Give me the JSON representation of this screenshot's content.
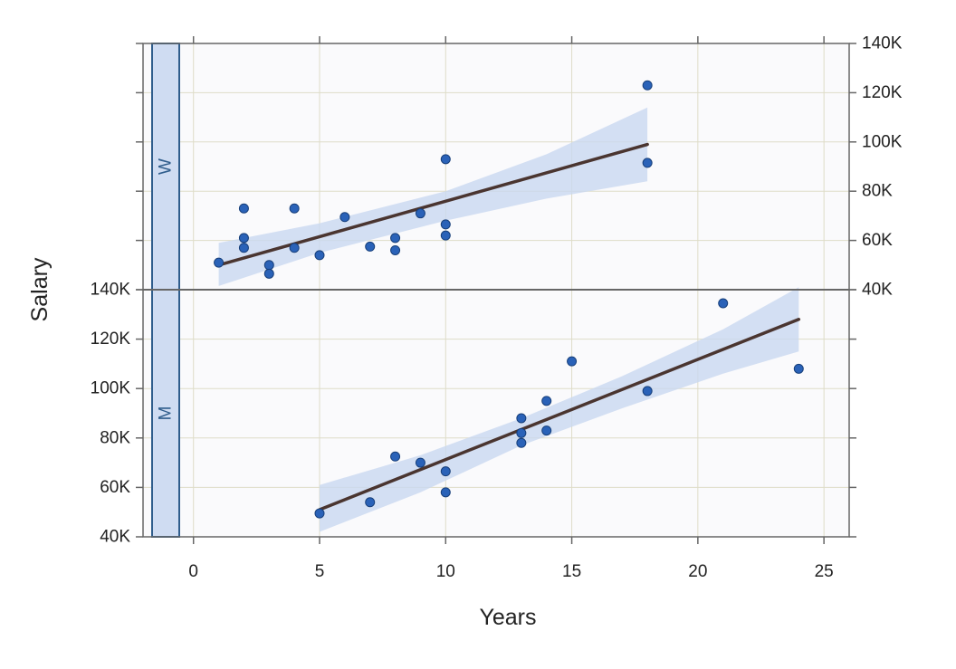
{
  "chart_data": {
    "type": "scatter",
    "title": "",
    "xlabel": "Years",
    "ylabel": "Salary",
    "xlim": [
      -2,
      26
    ],
    "ylim": [
      40000,
      140000
    ],
    "x_ticks": [
      0,
      5,
      10,
      15,
      20,
      25
    ],
    "x_tick_labels": [
      "0",
      "5",
      "10",
      "15",
      "20",
      "25"
    ],
    "y_ticks": [
      40000,
      60000,
      80000,
      100000,
      120000,
      140000
    ],
    "y_tick_labels": [
      "40K",
      "60K",
      "80K",
      "100K",
      "120K",
      "140K"
    ],
    "grid": true,
    "colors": {
      "panel_bg": "#fafafc",
      "grid": "#dedcc8",
      "point_fill": "#2a62b8",
      "point_stroke": "#173f7a",
      "fit_line": "#4a3530",
      "band": "#c9d8f0",
      "strip_bg": "#cfdcf2",
      "strip_border": "#2f5d8c",
      "frame": "#666666"
    },
    "panels": [
      {
        "label": "W",
        "points": [
          {
            "x": 1,
            "y": 51000
          },
          {
            "x": 2,
            "y": 73000
          },
          {
            "x": 2,
            "y": 61000
          },
          {
            "x": 2,
            "y": 57000
          },
          {
            "x": 3,
            "y": 50000
          },
          {
            "x": 3,
            "y": 46500
          },
          {
            "x": 4,
            "y": 73000
          },
          {
            "x": 4,
            "y": 57000
          },
          {
            "x": 5,
            "y": 54000
          },
          {
            "x": 6,
            "y": 69500
          },
          {
            "x": 7,
            "y": 57500
          },
          {
            "x": 8,
            "y": 61000
          },
          {
            "x": 8,
            "y": 56000
          },
          {
            "x": 9,
            "y": 71000
          },
          {
            "x": 10,
            "y": 93000
          },
          {
            "x": 10,
            "y": 66500
          },
          {
            "x": 10,
            "y": 62000
          },
          {
            "x": 18,
            "y": 123000
          },
          {
            "x": 18,
            "y": 91500
          }
        ],
        "fit": {
          "x": [
            1,
            18
          ],
          "y": [
            50000,
            99000
          ]
        },
        "band": {
          "x": [
            1,
            5,
            10,
            14,
            18
          ],
          "lower": [
            41500,
            55000,
            68000,
            77000,
            84000
          ],
          "upper": [
            59000,
            67000,
            80000,
            95000,
            114000
          ]
        }
      },
      {
        "label": "M",
        "points": [
          {
            "x": 5,
            "y": 49500
          },
          {
            "x": 7,
            "y": 54000
          },
          {
            "x": 8,
            "y": 72500
          },
          {
            "x": 9,
            "y": 70000
          },
          {
            "x": 10,
            "y": 66500
          },
          {
            "x": 10,
            "y": 58000
          },
          {
            "x": 13,
            "y": 88000
          },
          {
            "x": 13,
            "y": 82000
          },
          {
            "x": 13,
            "y": 78000
          },
          {
            "x": 14,
            "y": 95000
          },
          {
            "x": 14,
            "y": 83000
          },
          {
            "x": 15,
            "y": 111000
          },
          {
            "x": 18,
            "y": 99000
          },
          {
            "x": 21,
            "y": 134500
          },
          {
            "x": 24,
            "y": 108000
          }
        ],
        "fit": {
          "x": [
            5,
            24
          ],
          "y": [
            51000,
            128000
          ]
        },
        "band": {
          "x": [
            5,
            9,
            13,
            17,
            21,
            24
          ],
          "lower": [
            42000,
            58000,
            77000,
            92000,
            106000,
            115000
          ],
          "upper": [
            61000,
            73000,
            88000,
            105000,
            124000,
            141000
          ]
        }
      }
    ]
  }
}
